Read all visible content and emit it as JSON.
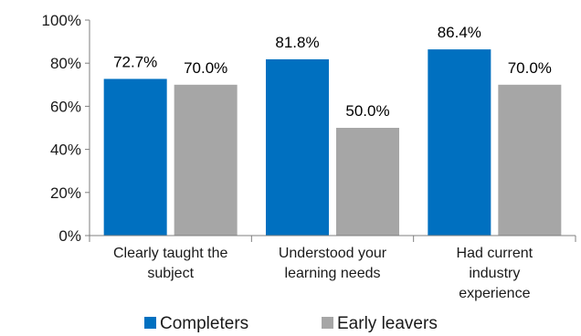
{
  "chart_data": {
    "type": "bar",
    "categories": [
      [
        "Clearly taught the",
        "subject"
      ],
      [
        "Understood your",
        "learning needs"
      ],
      [
        "Had current",
        "industry",
        "experience"
      ]
    ],
    "series": [
      {
        "name": "Completers",
        "values": [
          72.7,
          81.8,
          86.4
        ],
        "labels": [
          "72.7%",
          "81.8%",
          "86.4%"
        ],
        "color": "#0070C0"
      },
      {
        "name": "Early leavers",
        "values": [
          70.0,
          50.0,
          70.0
        ],
        "labels": [
          "70.0%",
          "50.0%",
          "70.0%"
        ],
        "color": "#A6A6A6"
      }
    ],
    "y_ticks": [
      "0%",
      "20%",
      "40%",
      "60%",
      "80%",
      "100%"
    ],
    "ylim": [
      0,
      100
    ],
    "legend_position": "bottom",
    "grid": false
  }
}
